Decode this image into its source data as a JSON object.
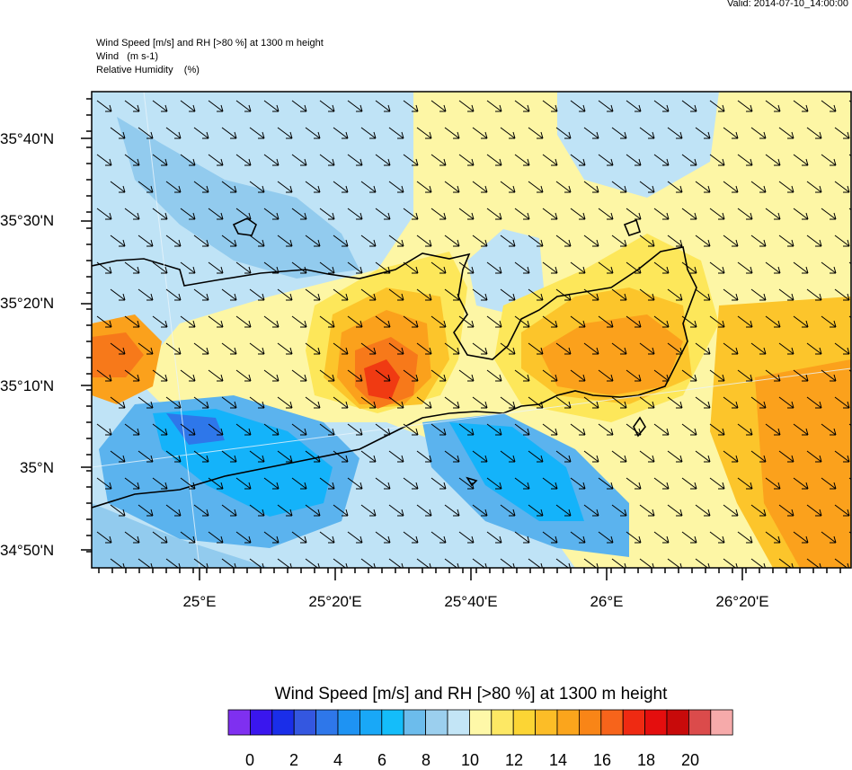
{
  "header": {
    "valid": "Valid: 2014-07-10_14:00:00",
    "line1": "Wind Speed [m/s] and RH [>80 %] at 1300 m height",
    "line2": "Wind   (m s-1)",
    "line3": "Relative Humidity    (%)"
  },
  "map": {
    "lat_labels": [
      "35°40'N",
      "35°30'N",
      "35°20'N",
      "35°10'N",
      "35°N",
      "34°50'N"
    ],
    "lon_labels": [
      "25°E",
      "25°20'E",
      "25°40'E",
      "26°E",
      "26°20'E"
    ],
    "arrow_direction": "southeast",
    "colors": {
      "light_blue": "#bfe3f6",
      "mid_blue": "#92cbee",
      "blue": "#5bb3ee",
      "bright_blue": "#14b3fa",
      "pale_yellow": "#fdf6a5",
      "yellow": "#fde75a",
      "gold": "#fcc52b",
      "orange": "#fba11c",
      "dark_orange": "#f7791a",
      "red": "#f03a12",
      "coast": "#000000"
    }
  },
  "colorbar": {
    "title": "Wind Speed [m/s] and RH [>80 %] at 1300 m height",
    "labels": [
      "0",
      "2",
      "4",
      "6",
      "8",
      "10",
      "12",
      "14",
      "16",
      "18",
      "20"
    ],
    "colors": [
      "#7f30f0",
      "#3a16ee",
      "#1a2ee9",
      "#3457e0",
      "#2e77ea",
      "#1e93f3",
      "#19a8f7",
      "#14bdfa",
      "#6cbcec",
      "#9bcfee",
      "#c3e5f6",
      "#fef8a8",
      "#fde864",
      "#fcd534",
      "#fcbd27",
      "#fba51c",
      "#f98517",
      "#f7641b",
      "#ef2a12",
      "#e40e0e",
      "#c80a0a",
      "#db4b4b",
      "#f6aaaa"
    ]
  }
}
